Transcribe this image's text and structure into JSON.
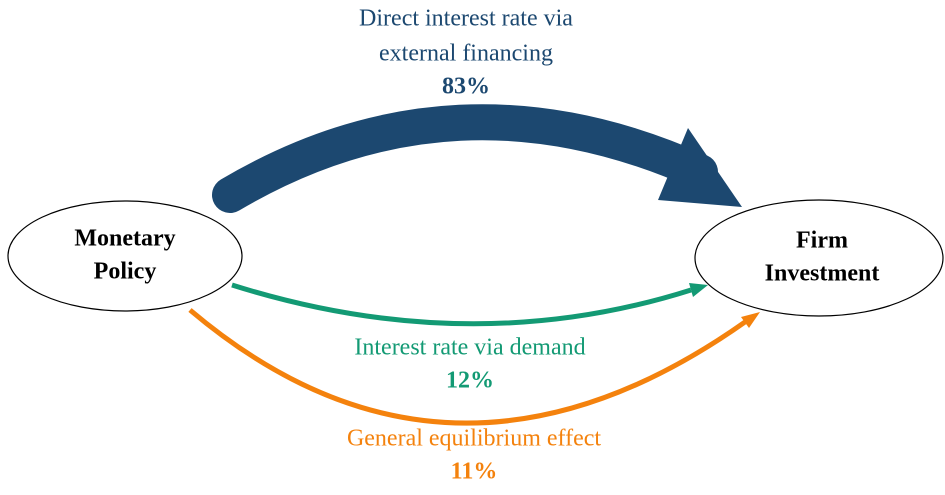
{
  "nodes": [
    {
      "label": [
        "Monetary",
        "Policy"
      ]
    },
    {
      "label": [
        "Firm",
        "Investment"
      ]
    }
  ],
  "edges": [
    {
      "label": [
        "Direct interest rate via",
        "external financing"
      ],
      "share": "83%"
    },
    {
      "label": [
        "Interest rate via demand"
      ],
      "share": "12%"
    },
    {
      "label": [
        "General equilibrium effect"
      ],
      "share": "11%"
    }
  ]
}
